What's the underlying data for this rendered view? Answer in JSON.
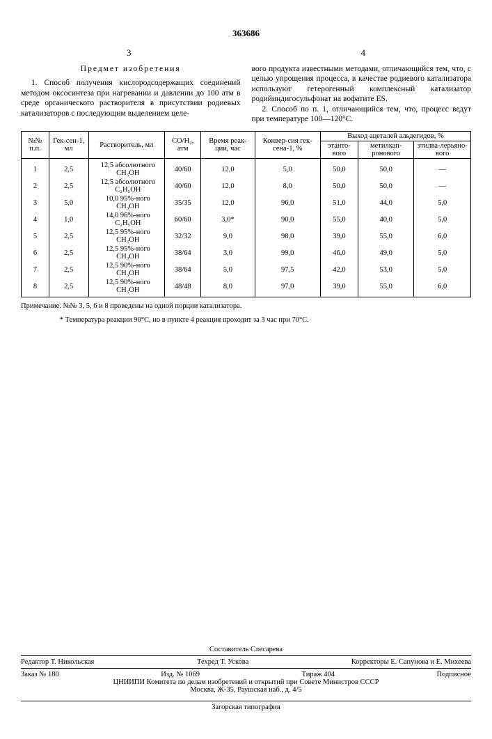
{
  "doc_number": "363686",
  "page_left": "3",
  "page_right": "4",
  "claims_heading": "Предмет изобретения",
  "claim1": "1. Способ получения кислородсодержащих соединений методом оксосинтеза при нагревании и давлении до 100 атм в среде органического растворителя в присутствии родиевых катализаторов с последующим выделением целе-",
  "claim1b": "вого продукта известными методами, отличающийся тем, что, с целью упрощения процесса, в качестве родиевого катализатора используют гетерогенный комплексный катализатор родийиндигосульфонат на вофатите ES.",
  "claim2": "2. Способ по п. 1, отличающийся тем, что, процесс ведут при температуре 100—120°С.",
  "table": {
    "head": {
      "c1": "№№ п.п.",
      "c2": "Гек-сен-1, мл",
      "c3": "Растворитель, мл",
      "c4": "CO/H₂, атм",
      "c5": "Время реак-ции, час",
      "c6": "Конвер-сия гек-сена-1, %",
      "c7": "Выход ацеталей альдегидов, %",
      "c7a": "этанто-вого",
      "c7b": "метилкап-ронового",
      "c7c": "этилва-лерьяно-вого"
    },
    "rows": [
      {
        "n": "1",
        "hex": "2,5",
        "solv": "12,5 абсолютного CH₃OH",
        "co": "40/60",
        "t": "12,0",
        "conv": "5,0",
        "a": "50,0",
        "b": "50,0",
        "c": "—"
      },
      {
        "n": "2",
        "hex": "2,5",
        "solv": "12,5 абсолютного C₂H₅OH",
        "co": "40/60",
        "t": "12,0",
        "conv": "8,0",
        "a": "50,0",
        "b": "50,0",
        "c": "—"
      },
      {
        "n": "3",
        "hex": "5,0",
        "solv": "10,0 95%-ного  CH₃OH",
        "co": "35/35",
        "t": "12,0",
        "conv": "96,0",
        "a": "51,0",
        "b": "44,0",
        "c": "5,0"
      },
      {
        "n": "4",
        "hex": "1,0",
        "solv": "14,0 96%-ного  C₂H₅OH",
        "co": "60/60",
        "t": "3,0*",
        "conv": "90,0",
        "a": "55,0",
        "b": "40,0",
        "c": "5,0"
      },
      {
        "n": "5",
        "hex": "2,5",
        "solv": "12,5 95%-ного  CH₃OH",
        "co": "32/32",
        "t": "9,0",
        "conv": "98,0",
        "a": "39,0",
        "b": "55,0",
        "c": "6,0"
      },
      {
        "n": "6",
        "hex": "2,5",
        "solv": "12,5 95%-ного  CH₃OH",
        "co": "38/64",
        "t": "3,0",
        "conv": "99,0",
        "a": "46,0",
        "b": "49,0",
        "c": "5,0"
      },
      {
        "n": "7",
        "hex": "2,5",
        "solv": "12,5 90%-ного  CH₃OH",
        "co": "38/64",
        "t": "5,0",
        "conv": "97,5",
        "a": "42,0",
        "b": "53,0",
        "c": "5,0"
      },
      {
        "n": "8",
        "hex": "2,5",
        "solv": "12,5 90%-ного  CH₃OH",
        "co": "48/48",
        "t": "8,0",
        "conv": "97,0",
        "a": "39,0",
        "b": "55,0",
        "c": "6,0"
      }
    ]
  },
  "note1": "Примечание. №№ 3, 5, 6 и 8 проведены на одной порции катализатора.",
  "note2": "* Температура реакции 90°С, но в пункте 4 реакция проходит за 3 час при 70°С.",
  "footer": {
    "compiler": "Составитель Слесарева",
    "editor": "Редактор Т. Никольская",
    "tech": "Техред Т. Ускова",
    "corr": "Корректоры Е. Сапунова и Е. Михеева",
    "order": "Заказ № 180",
    "izd": "Изд. № 1069",
    "tirazh": "Тираж 404",
    "sub": "Подписное",
    "org": "ЦНИИПИ Комитета по делам изобретений и открытий при Совете Министров СССР",
    "addr": "Москва, Ж-35, Раушская наб., д. 4/5",
    "print": "Загорская типография"
  }
}
